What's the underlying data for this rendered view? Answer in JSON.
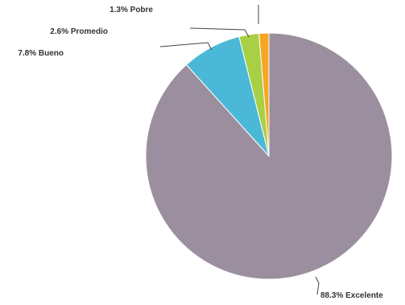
{
  "chart_data": {
    "type": "pie",
    "title": "",
    "slices": [
      {
        "label": "Pobre",
        "value": 1.3,
        "text": "1.3% Pobre",
        "color": "#f5a623"
      },
      {
        "label": "Promedio",
        "value": 2.6,
        "text": "2.6% Promedio",
        "color": "#a8cf45"
      },
      {
        "label": "Bueno",
        "value": 7.8,
        "text": "7.8% Bueno",
        "color": "#4cb8d8"
      },
      {
        "label": "Excelente",
        "value": 88.3,
        "text": "88.3% Excelente",
        "color": "#9b8f9f"
      }
    ],
    "start": "top",
    "direction": "counterclockwise"
  }
}
